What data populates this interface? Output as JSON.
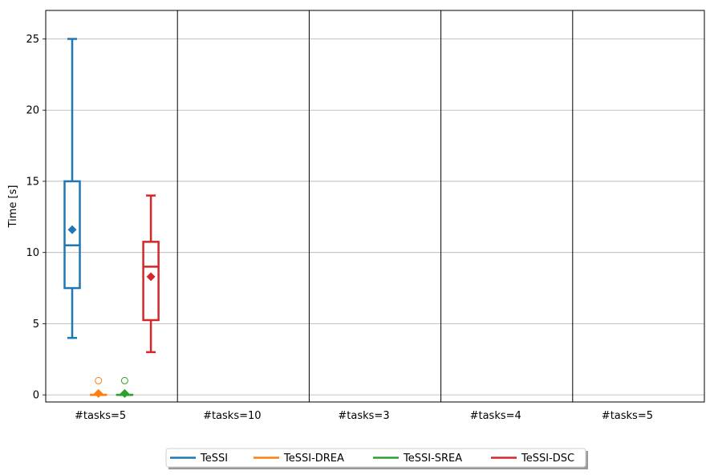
{
  "chart_data": {
    "type": "box",
    "ylabel": "Time [s]",
    "xlabel": "",
    "ylim": [
      -0.5,
      27
    ],
    "yticks": [
      0,
      5,
      10,
      15,
      20,
      25
    ],
    "grid": "y",
    "legend_position": "bottom-center",
    "groups": [
      "#tasks=5",
      "#tasks=10",
      "#tasks=3",
      "#tasks=4",
      "#tasks=5"
    ],
    "series": [
      {
        "name": "TeSSI",
        "color": "#1f77b4",
        "boxes": [
          {
            "group": 0,
            "whisker_low": 4,
            "q1": 7.5,
            "median": 10.5,
            "q3": 15,
            "whisker_high": 25,
            "mean": 11.6,
            "outliers": []
          }
        ]
      },
      {
        "name": "TeSSI-DREA",
        "color": "#ff7f0e",
        "boxes": [
          {
            "group": 0,
            "whisker_low": 0,
            "q1": 0,
            "median": 0,
            "q3": 0,
            "whisker_high": 0,
            "mean": 0.1,
            "outliers": [
              1
            ]
          }
        ]
      },
      {
        "name": "TeSSI-SREA",
        "color": "#2ca02c",
        "boxes": [
          {
            "group": 0,
            "whisker_low": 0,
            "q1": 0,
            "median": 0,
            "q3": 0,
            "whisker_high": 0,
            "mean": 0.1,
            "outliers": [
              1
            ]
          }
        ]
      },
      {
        "name": "TeSSI-DSC",
        "color": "#d62728",
        "boxes": [
          {
            "group": 0,
            "whisker_low": 3,
            "q1": 5.25,
            "median": 9,
            "q3": 10.75,
            "whisker_high": 14,
            "mean": 8.3,
            "outliers": []
          }
        ]
      }
    ]
  }
}
